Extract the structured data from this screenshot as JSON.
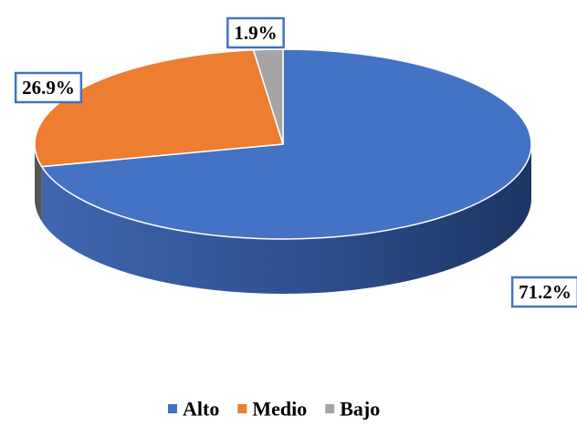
{
  "chart_data": {
    "type": "pie",
    "style": "3d",
    "categories": [
      "Alto",
      "Medio",
      "Bajo"
    ],
    "values": [
      71.2,
      26.9,
      1.9
    ],
    "data_labels": [
      "71.2%",
      "26.9%",
      "1.9%"
    ],
    "colors": [
      "#4472C4",
      "#ED7D31",
      "#A5A5A5"
    ],
    "title": "",
    "legend_position": "bottom"
  }
}
